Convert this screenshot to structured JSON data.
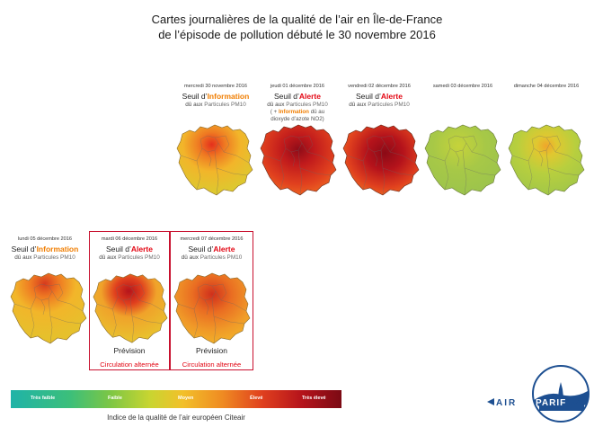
{
  "title": {
    "line1": "Cartes journalières de la qualité de l’air en Île-de-France",
    "line2": "de l’épisode de pollution débuté le 30 novembre 2016"
  },
  "days": [
    {
      "date": "mercredi 30 novembre 2016",
      "seuil_prefix": "Seuil d’",
      "seuil_level": "Information",
      "level_type": "info",
      "cause_prefix": "dû aux ",
      "cause_pollutant": "Particules PM10",
      "extra": null,
      "forecast": false
    },
    {
      "date": "jeudi 01 décembre 2016",
      "seuil_prefix": "Seuil d’",
      "seuil_level": "Alerte",
      "level_type": "alert",
      "cause_prefix": "dû aux ",
      "cause_pollutant": "Particules PM10",
      "extra": {
        "open": "( + ",
        "level": "Information",
        "rest": " dû au",
        "line2": "dioxyde d’azote NO2)"
      },
      "forecast": false
    },
    {
      "date": "vendredi 02 décembre 2016",
      "seuil_prefix": "Seuil d’",
      "seuil_level": "Alerte",
      "level_type": "alert",
      "cause_prefix": "dû aux ",
      "cause_pollutant": "Particules PM10",
      "extra": null,
      "forecast": false
    },
    {
      "date": "samedi 03 décembre 2016",
      "seuil_prefix": "",
      "seuil_level": "",
      "level_type": "none",
      "cause_prefix": "",
      "cause_pollutant": "",
      "extra": null,
      "forecast": false
    },
    {
      "date": "dimanche 04 décembre 2016",
      "seuil_prefix": "",
      "seuil_level": "",
      "level_type": "none",
      "cause_prefix": "",
      "cause_pollutant": "",
      "extra": null,
      "forecast": false
    },
    {
      "date": "lundi 05 décembre 2016",
      "seuil_prefix": "Seuil d’",
      "seuil_level": "Information",
      "level_type": "info",
      "cause_prefix": "dû aux ",
      "cause_pollutant": "Particules PM10",
      "extra": null,
      "forecast": false
    },
    {
      "date": "mardi 06 décembre 2016",
      "seuil_prefix": "Seuil d’",
      "seuil_level": "Alerte",
      "level_type": "alert",
      "cause_prefix": "dû aux ",
      "cause_pollutant": "Particules PM10",
      "extra": null,
      "forecast": true,
      "forecast_label": "Prévision",
      "traffic": "Circulation alternée"
    },
    {
      "date": "mercredi 07 décembre 2016",
      "seuil_prefix": "Seuil d’",
      "seuil_level": "Alerte",
      "level_type": "alert",
      "cause_prefix": "dû aux ",
      "cause_pollutant": "Particules PM10",
      "extra": null,
      "forecast": true,
      "forecast_label": "Prévision",
      "traffic": "Circulation alternée"
    }
  ],
  "scale": {
    "labels": [
      "Très faible",
      "Faible",
      "Moyen",
      "Élevé",
      "Très élevé"
    ],
    "caption": "Indice de la qualité de l’air européen Citeair"
  },
  "logo": {
    "text_air": "AIR",
    "text_parif": "PARIF"
  },
  "colors": {
    "info": "#f07d00",
    "alert": "#e30613",
    "box": "#c8102e",
    "logo_blue": "#1d4f91"
  }
}
